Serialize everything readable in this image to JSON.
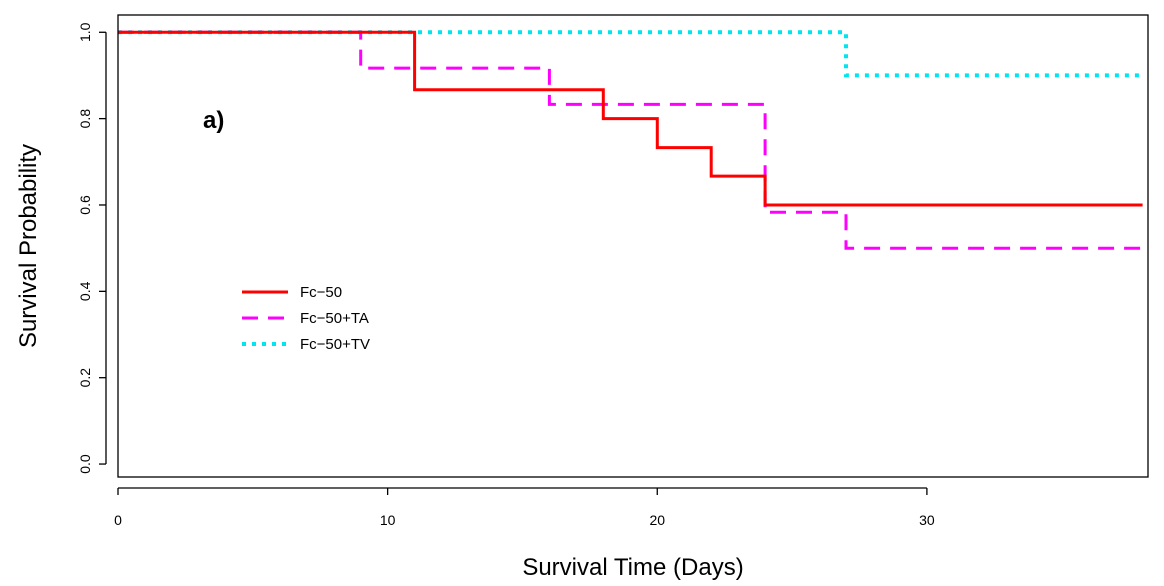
{
  "chart_data": {
    "type": "line",
    "subtype": "step",
    "xlabel": "Survival Time (Days)",
    "ylabel": "Survival Probability",
    "panel_label": "a)",
    "xlim": [
      0,
      38.2
    ],
    "ylim": [
      -0.03,
      1.04
    ],
    "x_ticks": [
      0,
      10,
      20,
      30
    ],
    "x_tick_labels": [
      "0",
      "10",
      "20",
      "30"
    ],
    "y_ticks": [
      0.0,
      0.2,
      0.4,
      0.6,
      0.8,
      1.0
    ],
    "y_tick_labels": [
      "0.0",
      "0.2",
      "0.4",
      "0.6",
      "0.8",
      "1.0"
    ],
    "grid": false,
    "legend_position": "center-left",
    "series": [
      {
        "name": "Fc−50",
        "color": "#ff0000",
        "line_style": "solid",
        "x": [
          0,
          11,
          18,
          20,
          22,
          24,
          38
        ],
        "y": [
          1.0,
          0.867,
          0.8,
          0.733,
          0.667,
          0.6,
          0.6
        ]
      },
      {
        "name": "Fc−50+TA",
        "color": "#ff00ff",
        "line_style": "dashed",
        "x": [
          0,
          9,
          16,
          24,
          27,
          38
        ],
        "y": [
          1.0,
          0.917,
          0.833,
          0.583,
          0.5,
          0.5
        ]
      },
      {
        "name": "Fc−50+TV",
        "color": "#00e5ee",
        "line_style": "dotted",
        "x": [
          0,
          27,
          38
        ],
        "y": [
          1.0,
          0.9,
          0.9
        ]
      }
    ]
  }
}
